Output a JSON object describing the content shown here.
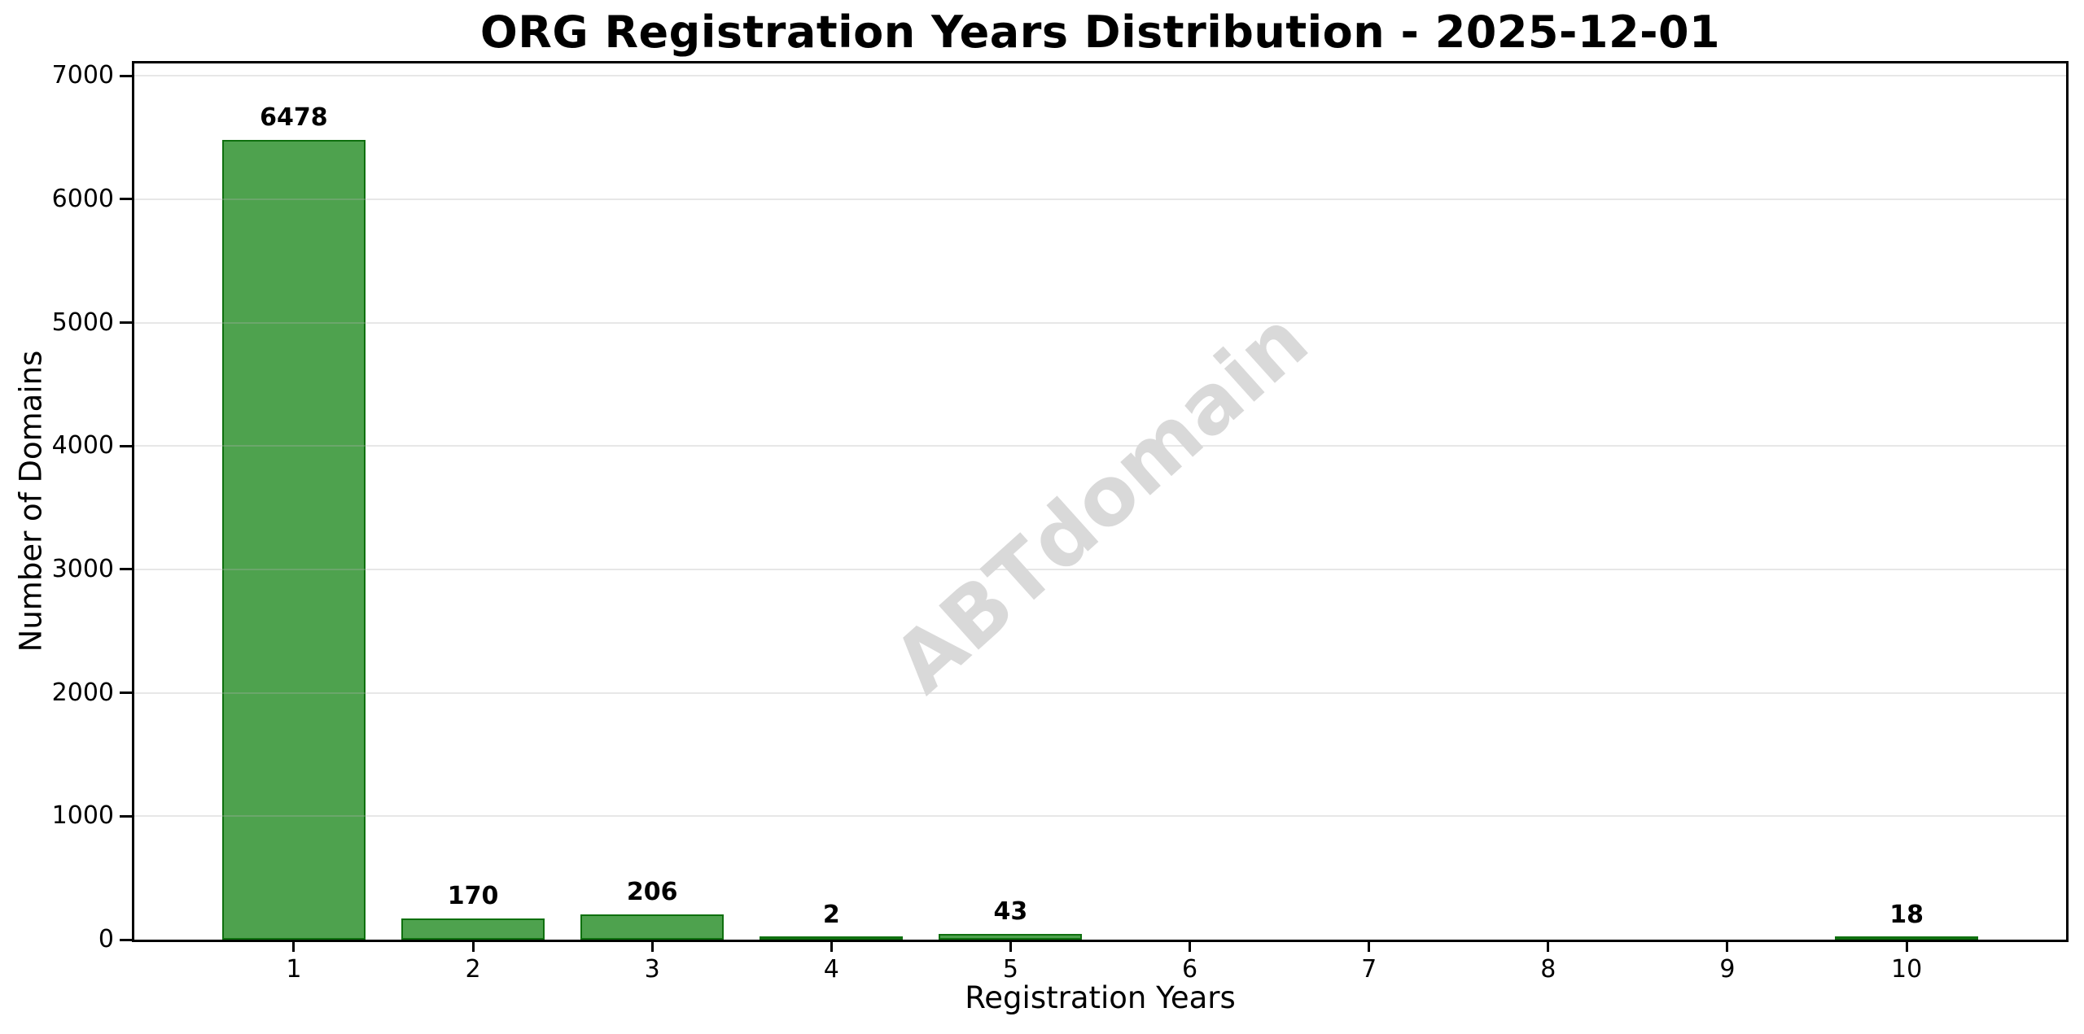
{
  "watermark": {
    "text": "ABTdomain"
  },
  "chart_data": {
    "type": "bar",
    "title": "ORG Registration Years Distribution - 2025-12-01",
    "xlabel": "Registration Years",
    "ylabel": "Number of Domains",
    "categories": [
      1,
      2,
      3,
      4,
      5,
      6,
      7,
      8,
      9,
      10
    ],
    "values": [
      6478,
      170,
      206,
      2,
      43,
      0,
      0,
      0,
      0,
      18
    ],
    "bar_value_labels": [
      "6478",
      "170",
      "206",
      "2",
      "43",
      "",
      "",
      "",
      "",
      "18"
    ],
    "x_ticks": [
      1,
      2,
      3,
      4,
      5,
      6,
      7,
      8,
      9,
      10
    ],
    "y_ticks": [
      0,
      1000,
      2000,
      3000,
      4000,
      5000,
      6000,
      7000
    ],
    "xlim": [
      0.11,
      10.89
    ],
    "ylim": [
      0,
      7100
    ],
    "bar_width": 0.8,
    "grid": "horizontal",
    "legend": "none",
    "colors": {
      "bar_fill": "rgba(34,139,34,0.8)",
      "bar_edge": "rgba(0,100,0,0.8)",
      "grid_line": "rgba(176,176,176,0.3)",
      "axis": "#000000",
      "text": "#000000",
      "watermark": "#d9d9d9",
      "background": "#ffffff"
    }
  }
}
